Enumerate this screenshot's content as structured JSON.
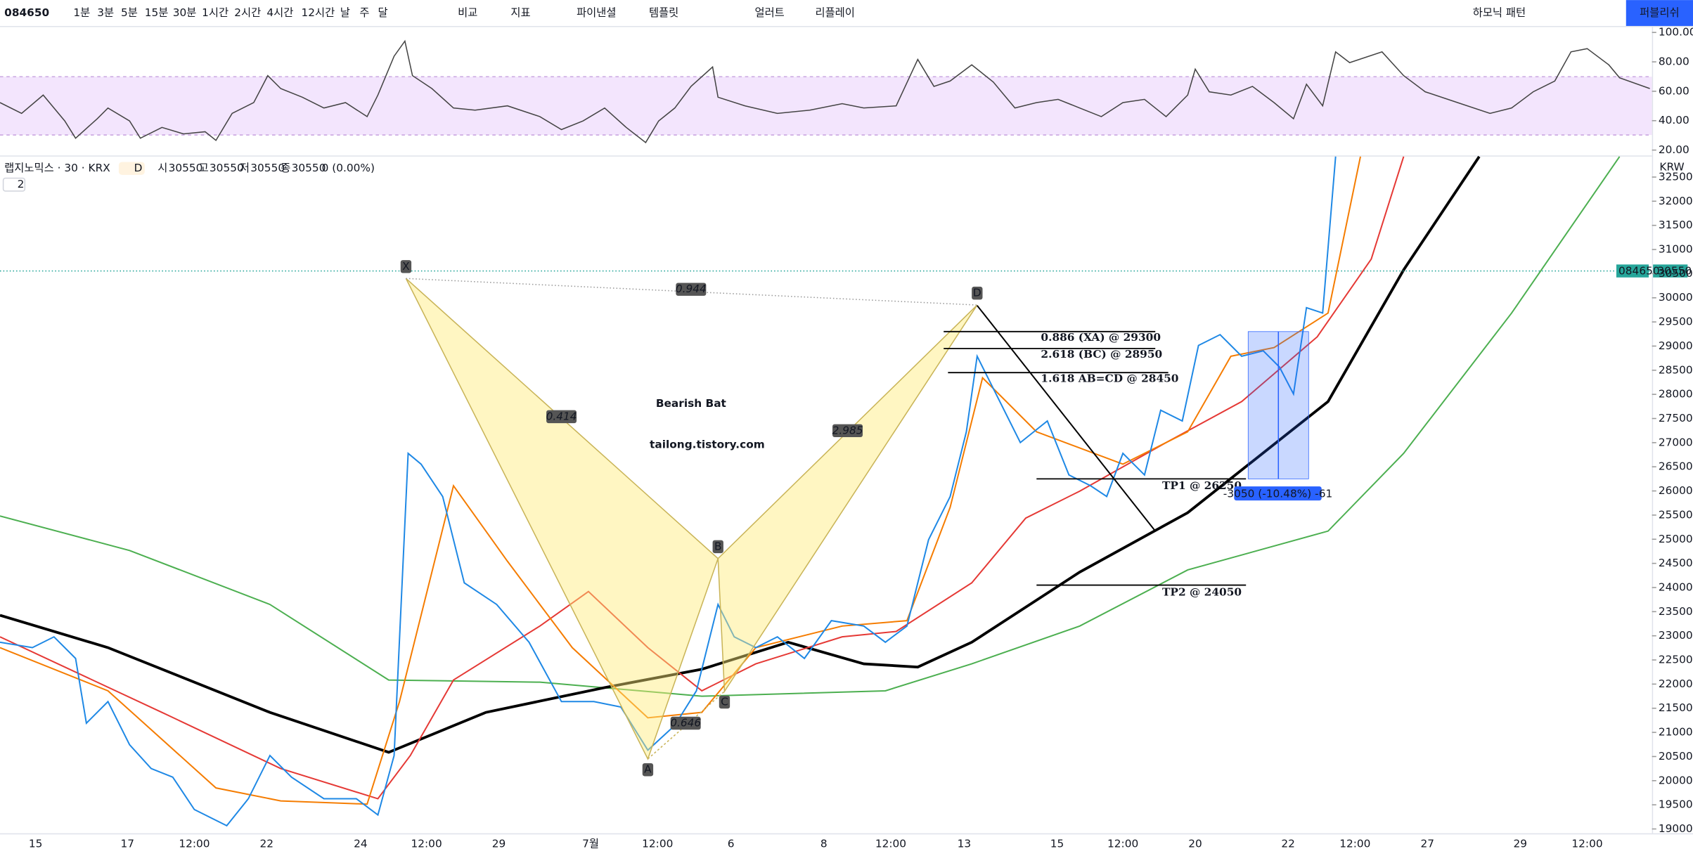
{
  "toolbar": {
    "symbol": "084650",
    "intervals": [
      "1분",
      "3분",
      "5분",
      "15분",
      "30분",
      "1시간",
      "2시간",
      "4시간",
      "12시간",
      "날",
      "주",
      "달"
    ],
    "active_interval": "30분",
    "tools": [
      "비교",
      "지표",
      "파이낸셜",
      "템플릿",
      "얼러트",
      "리플레이"
    ],
    "pattern_menu": "하모닉 패턴",
    "publish": "퍼블리쉬"
  },
  "legend": {
    "title": "랩지노믹스 · 30 · KRX",
    "badge": "D",
    "fields": [
      [
        "시",
        "30550"
      ],
      [
        "고",
        "30550"
      ],
      [
        "저",
        "30550"
      ],
      [
        "종",
        "30550"
      ]
    ],
    "change": "0 (0.00%)",
    "collapse": "2"
  },
  "rsi_axis": {
    "ylim": [
      20,
      100
    ],
    "yticks": [
      {
        "value": 100,
        "label": "100.00"
      },
      {
        "value": 80,
        "label": "80.00"
      },
      {
        "value": 60,
        "label": "60.00"
      },
      {
        "value": 40,
        "label": "40.00"
      },
      {
        "value": 20,
        "label": "20.00"
      }
    ]
  },
  "price_axis": {
    "currency": "KRW",
    "ylim": [
      19000,
      32500
    ],
    "yticks": [
      19000,
      19500,
      20000,
      20500,
      21000,
      21500,
      22000,
      22500,
      23000,
      23500,
      24000,
      24500,
      25000,
      25500,
      26000,
      26500,
      27000,
      27500,
      28000,
      28500,
      29000,
      29500,
      30000,
      30500,
      31000,
      31500,
      32000,
      32500
    ],
    "last_price": 30550,
    "last_symbol": "084650"
  },
  "time_axis": [
    "15",
    "17",
    "12:00",
    "22",
    "24",
    "12:00",
    "29",
    "7월",
    "12:00",
    "6",
    "8",
    "12:00",
    "13",
    "15",
    "12:00",
    "20",
    "22",
    "12:00",
    "27",
    "29",
    "12:00"
  ],
  "pattern": {
    "title": "Bearish Bat",
    "watermark": "tailong.tistory.com",
    "points": [
      {
        "label": "X",
        "price": 30400
      },
      {
        "label": "A",
        "price": 20450
      },
      {
        "label": "B",
        "price": 24600
      },
      {
        "label": "C",
        "price": 21850
      },
      {
        "label": "D",
        "price": 29850
      }
    ],
    "ratios": [
      "0.944",
      "0.414",
      "2.985",
      "0.646"
    ],
    "levels": [
      {
        "label": "0.886 (XA) @ 29300",
        "price": 29300
      },
      {
        "label": "2.618 (BC) @ 28950",
        "price": 28950
      },
      {
        "label": "1.618 AB=CD @ 28450",
        "price": 28450
      },
      {
        "label": "TP1 @ 26250",
        "price": 26250
      },
      {
        "label": "TP2 @ 24050",
        "price": 24050
      }
    ],
    "measure": "-3050 (-10.48%) -61"
  }
}
